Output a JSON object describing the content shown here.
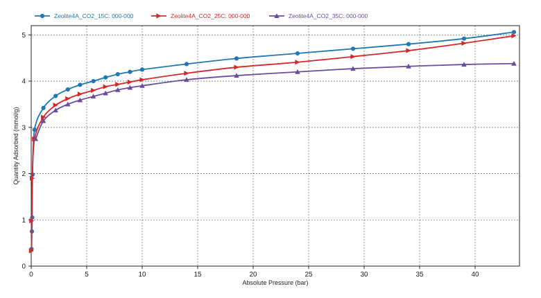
{
  "chart_data": {
    "type": "line",
    "xlabel": "Absolute Pressure (bar)",
    "ylabel": "Quantity Adsorbed (mmol/g)",
    "xlim": [
      0,
      44
    ],
    "ylim": [
      0,
      5.2
    ],
    "x_ticks": [
      0,
      5,
      10,
      15,
      20,
      25,
      30,
      35,
      40
    ],
    "y_ticks": [
      0,
      1,
      2,
      3,
      4,
      5
    ],
    "grid": true,
    "legend_position": "top",
    "series": [
      {
        "name": "Zeolite4A_CO2_15C: 000-000",
        "color": "#1f77b4",
        "marker": "circle",
        "points": [
          [
            0.03,
            0.37
          ],
          [
            0.06,
            0.75
          ],
          [
            0.09,
            1.05
          ],
          [
            0.12,
            1.98
          ],
          [
            0.3,
            2.95
          ],
          [
            1.1,
            3.42
          ],
          [
            2.2,
            3.68
          ],
          [
            3.3,
            3.82
          ],
          [
            4.4,
            3.92
          ],
          [
            5.6,
            4.0
          ],
          [
            6.7,
            4.08
          ],
          [
            7.8,
            4.15
          ],
          [
            8.9,
            4.2
          ],
          [
            10.0,
            4.25
          ],
          [
            14.0,
            4.37
          ],
          [
            18.5,
            4.49
          ],
          [
            24.0,
            4.6
          ],
          [
            29.0,
            4.7
          ],
          [
            34.0,
            4.8
          ],
          [
            39.0,
            4.92
          ],
          [
            43.5,
            5.06
          ]
        ]
      },
      {
        "name": "Zeolite4A_CO2_25C: 000-000",
        "color": "#d62728",
        "marker": "triangle-right",
        "points": [
          [
            0.02,
            0.33
          ],
          [
            0.05,
            0.98
          ],
          [
            0.1,
            1.9
          ],
          [
            0.3,
            2.75
          ],
          [
            1.1,
            3.22
          ],
          [
            2.2,
            3.48
          ],
          [
            3.3,
            3.62
          ],
          [
            4.4,
            3.72
          ],
          [
            5.6,
            3.8
          ],
          [
            6.7,
            3.88
          ],
          [
            7.8,
            3.93
          ],
          [
            8.9,
            3.98
          ],
          [
            10.0,
            4.03
          ],
          [
            14.0,
            4.17
          ],
          [
            18.5,
            4.3
          ],
          [
            24.0,
            4.41
          ],
          [
            29.0,
            4.53
          ],
          [
            34.0,
            4.66
          ],
          [
            39.0,
            4.82
          ],
          [
            43.5,
            4.98
          ]
        ]
      },
      {
        "name": "Zeolite4A_CO2_35C: 000-000",
        "color": "#6a4c9c",
        "marker": "triangle-up",
        "points": [
          [
            0.4,
            2.75
          ],
          [
            1.1,
            3.14
          ],
          [
            2.2,
            3.37
          ],
          [
            3.3,
            3.5
          ],
          [
            4.4,
            3.59
          ],
          [
            5.6,
            3.67
          ],
          [
            6.7,
            3.74
          ],
          [
            7.8,
            3.81
          ],
          [
            8.9,
            3.86
          ],
          [
            10.0,
            3.9
          ],
          [
            14.0,
            4.03
          ],
          [
            18.5,
            4.12
          ],
          [
            24.0,
            4.2
          ],
          [
            29.0,
            4.27
          ],
          [
            34.0,
            4.32
          ],
          [
            39.0,
            4.36
          ],
          [
            43.5,
            4.38
          ]
        ]
      }
    ]
  }
}
